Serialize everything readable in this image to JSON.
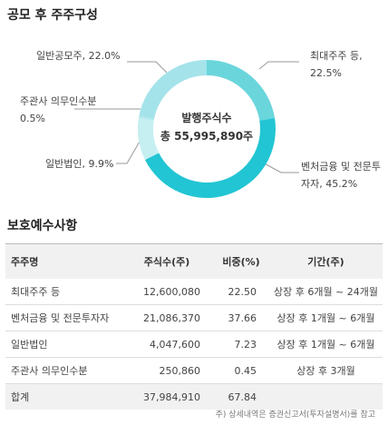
{
  "section1": {
    "title": "공모 후 주주구성"
  },
  "chart_data": {
    "type": "pie",
    "donut": true,
    "categories": [
      "최대주주 등,",
      "벤처금융 및 전문투자자,",
      "일반법인,",
      "주관사 의무인수분",
      "일반공모주,"
    ],
    "values": [
      22.5,
      45.2,
      9.9,
      0.5,
      22.0
    ],
    "value_labels": [
      "22.5%",
      "45.2%",
      "9.9%",
      "0.5%",
      "22.0%"
    ],
    "colors": [
      "#6ad6dc",
      "#22c5d3",
      "#c6eff2",
      "#b2e9ee",
      "#a4e3ea"
    ],
    "center_label": [
      "발행주식수",
      "총 55,995,890주"
    ]
  },
  "section2": {
    "title": "보호예수사항",
    "table": {
      "header": [
        "주주명",
        "주식수(주)",
        "비중(%)",
        "기간(주)"
      ],
      "rows": [
        [
          "최대주주 등",
          "12,600,080",
          "22.50",
          "상장 후 6개월 ~ 24개월"
        ],
        [
          "벤처금융 및 전문투자자",
          "21,086,370",
          "37.66",
          "상장 후 1개월 ~ 6개월"
        ],
        [
          "일반법인",
          "4,047,600",
          "7.23",
          "상장 후 1개월 ~ 6개월"
        ],
        [
          "주관사 의무인수분",
          "250,860",
          "0.45",
          "상장 후 3개월"
        ]
      ],
      "total": [
        "합계",
        "37,984,910",
        "67.84",
        ""
      ]
    },
    "footnote": "주) 상세내역은 증권신고서(투자설명서)를 참고"
  }
}
